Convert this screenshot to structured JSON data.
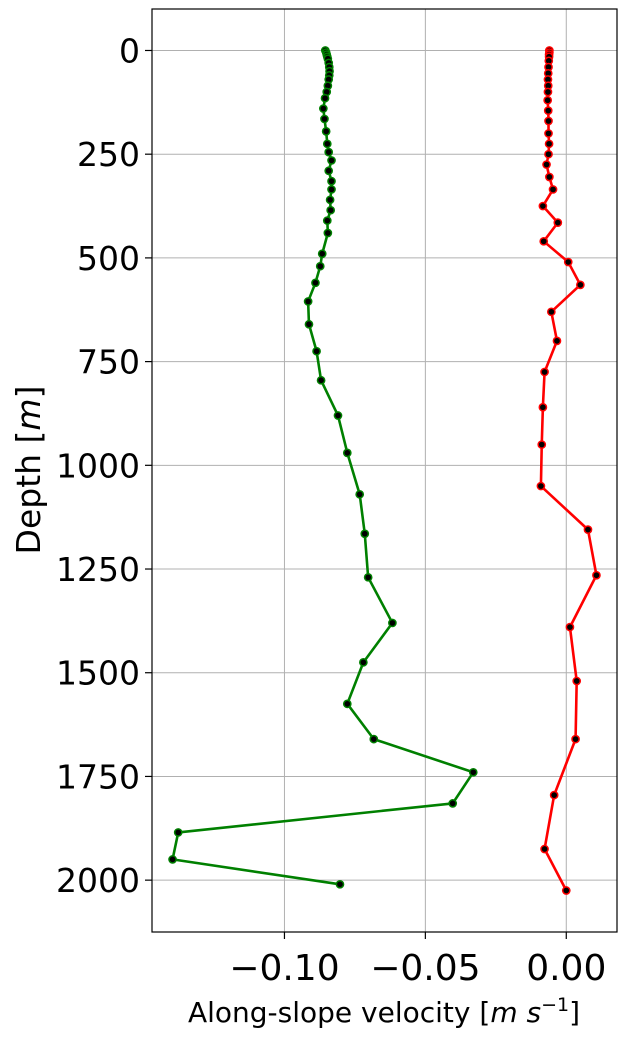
{
  "chart_data": {
    "type": "line",
    "xlabel": "Along-slope velocity",
    "xlabel_unit": "m s",
    "xlabel_unit_exp": "−1",
    "ylabel": "Depth",
    "ylabel_unit": "m",
    "xlim": [
      -0.147,
      0.018
    ],
    "ylim": [
      2125,
      -100
    ],
    "y_inverted": true,
    "grid": true,
    "xticks": [
      -0.1,
      -0.05,
      0.0
    ],
    "xtick_labels": [
      "−0.10",
      "−0.05",
      "0.00"
    ],
    "yticks": [
      0,
      250,
      500,
      750,
      1000,
      1250,
      1500,
      1750,
      2000
    ],
    "ytick_labels": [
      "0",
      "250",
      "500",
      "750",
      "1000",
      "1250",
      "1500",
      "1750",
      "2000"
    ],
    "series": [
      {
        "color": "#008000",
        "marker_color": "#000000",
        "points": [
          [
            -0.0855,
            0
          ],
          [
            -0.0852,
            5
          ],
          [
            -0.085,
            10
          ],
          [
            -0.0848,
            15
          ],
          [
            -0.0846,
            20
          ],
          [
            -0.0843,
            30
          ],
          [
            -0.0841,
            40
          ],
          [
            -0.084,
            50
          ],
          [
            -0.0841,
            60
          ],
          [
            -0.0843,
            70
          ],
          [
            -0.0846,
            85
          ],
          [
            -0.085,
            100
          ],
          [
            -0.0856,
            115
          ],
          [
            -0.0862,
            140
          ],
          [
            -0.0858,
            165
          ],
          [
            -0.0852,
            195
          ],
          [
            -0.0848,
            225
          ],
          [
            -0.0843,
            245
          ],
          [
            -0.0833,
            265
          ],
          [
            -0.0843,
            290
          ],
          [
            -0.0833,
            315
          ],
          [
            -0.0833,
            335
          ],
          [
            -0.0838,
            360
          ],
          [
            -0.0836,
            385
          ],
          [
            -0.0848,
            410
          ],
          [
            -0.0846,
            440
          ],
          [
            -0.0866,
            490
          ],
          [
            -0.0873,
            520
          ],
          [
            -0.089,
            560
          ],
          [
            -0.0916,
            605
          ],
          [
            -0.0913,
            660
          ],
          [
            -0.0886,
            725
          ],
          [
            -0.087,
            795
          ],
          [
            -0.081,
            880
          ],
          [
            -0.0777,
            970
          ],
          [
            -0.0733,
            1070
          ],
          [
            -0.0715,
            1165
          ],
          [
            -0.0703,
            1270
          ],
          [
            -0.0617,
            1380
          ],
          [
            -0.072,
            1475
          ],
          [
            -0.0777,
            1575
          ],
          [
            -0.0683,
            1660
          ],
          [
            -0.033,
            1740
          ],
          [
            -0.0403,
            1815
          ],
          [
            -0.1377,
            1885
          ],
          [
            -0.1397,
            1950
          ],
          [
            -0.0803,
            2010
          ]
        ]
      },
      {
        "color": "#ff0000",
        "marker_color": "#000000",
        "points": [
          [
            -0.006,
            0
          ],
          [
            -0.006,
            5
          ],
          [
            -0.0061,
            10
          ],
          [
            -0.0061,
            15
          ],
          [
            -0.0062,
            25
          ],
          [
            -0.0063,
            40
          ],
          [
            -0.0064,
            55
          ],
          [
            -0.0065,
            70
          ],
          [
            -0.0064,
            85
          ],
          [
            -0.0065,
            100
          ],
          [
            -0.0066,
            120
          ],
          [
            -0.0064,
            145
          ],
          [
            -0.0063,
            170
          ],
          [
            -0.0063,
            200
          ],
          [
            -0.0061,
            225
          ],
          [
            -0.0063,
            250
          ],
          [
            -0.007,
            275
          ],
          [
            -0.006,
            305
          ],
          [
            -0.0047,
            335
          ],
          [
            -0.0083,
            375
          ],
          [
            -0.003,
            415
          ],
          [
            -0.008,
            460
          ],
          [
            0.0007,
            510
          ],
          [
            0.005,
            565
          ],
          [
            -0.0053,
            630
          ],
          [
            -0.0033,
            700
          ],
          [
            -0.0077,
            775
          ],
          [
            -0.0083,
            860
          ],
          [
            -0.0087,
            950
          ],
          [
            -0.009,
            1050
          ],
          [
            0.0077,
            1155
          ],
          [
            0.0107,
            1265
          ],
          [
            0.0013,
            1390
          ],
          [
            0.0037,
            1520
          ],
          [
            0.0033,
            1660
          ],
          [
            -0.0043,
            1795
          ],
          [
            -0.0077,
            1925
          ],
          [
            0.0,
            2025
          ]
        ]
      }
    ]
  }
}
